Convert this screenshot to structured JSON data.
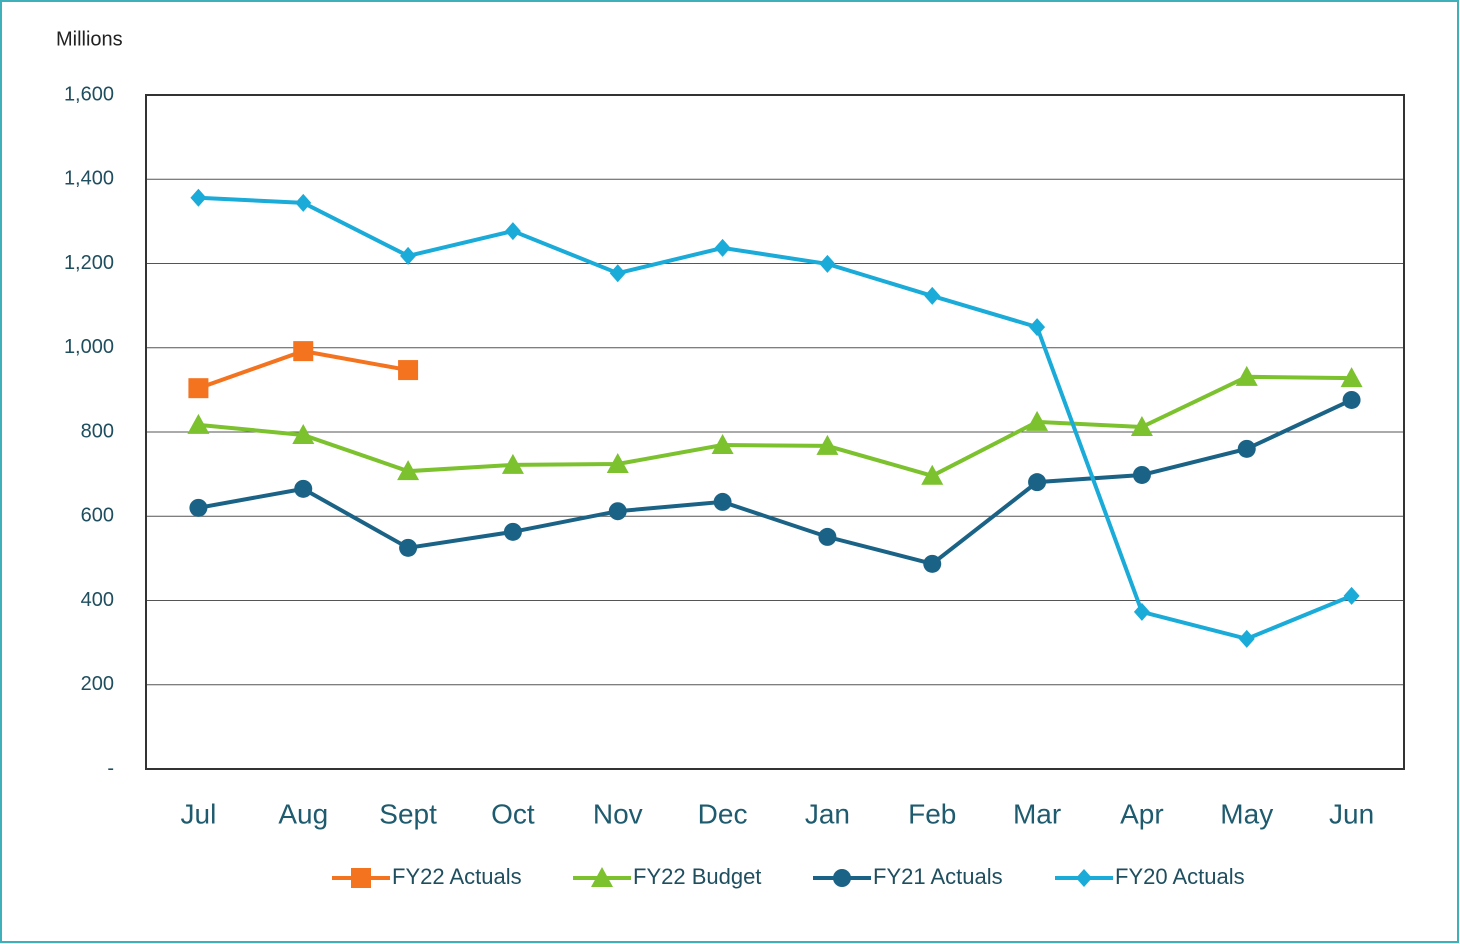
{
  "chart_data": {
    "type": "line",
    "y_label": "Millions",
    "categories": [
      "Jul",
      "Aug",
      "Sept",
      "Oct",
      "Nov",
      "Dec",
      "Jan",
      "Feb",
      "Mar",
      "Apr",
      "May",
      "Jun"
    ],
    "series": [
      {
        "name": "FY22 Actuals",
        "color": "#f4731f",
        "marker": "square",
        "values": [
          904,
          992,
          947,
          null,
          null,
          null,
          null,
          null,
          null,
          null,
          null,
          null
        ]
      },
      {
        "name": "FY22 Budget",
        "color": "#7cc12e",
        "marker": "triangle",
        "values": [
          817,
          793,
          707,
          722,
          724,
          769,
          767,
          696,
          824,
          812,
          931,
          928
        ]
      },
      {
        "name": "FY21 Actuals",
        "color": "#1b6386",
        "marker": "circle",
        "values": [
          620,
          665,
          525,
          563,
          612,
          634,
          551,
          487,
          681,
          698,
          760,
          876
        ]
      },
      {
        "name": "FY20 Actuals",
        "color": "#1aabd9",
        "marker": "diamond",
        "values": [
          1356,
          1344,
          1218,
          1277,
          1177,
          1237,
          1199,
          1123,
          1049,
          373,
          309,
          411
        ]
      }
    ],
    "ylim": [
      0,
      1600
    ],
    "yticks": [
      {
        "value": 0,
        "label": "-"
      },
      200,
      400,
      600,
      800,
      {
        "value": 1000,
        "label": "1,000"
      },
      {
        "value": 1200,
        "label": "1,200"
      },
      {
        "value": 1400,
        "label": "1,400"
      },
      {
        "value": 1600,
        "label": "1,600"
      }
    ],
    "grid": true,
    "legend": "bottom"
  }
}
